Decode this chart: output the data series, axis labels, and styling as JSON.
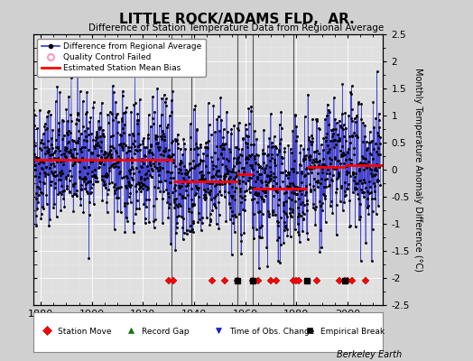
{
  "title": "LITTLE ROCK/ADAMS FLD,  AR.",
  "subtitle": "Difference of Station Temperature Data from Regional Average",
  "ylabel": "Monthly Temperature Anomaly Difference (°C)",
  "credit": "Berkeley Earth",
  "xlim": [
    1877,
    2014
  ],
  "ylim": [
    -2.5,
    2.5
  ],
  "yticks": [
    -2.5,
    -2,
    -1.5,
    -1,
    -0.5,
    0,
    0.5,
    1,
    1.5,
    2,
    2.5
  ],
  "xticks": [
    1880,
    1900,
    1920,
    1940,
    1960,
    1980,
    2000
  ],
  "bg_color": "#e0e0e0",
  "fig_bg_color": "#d0d0d0",
  "line_color": "#3333cc",
  "dot_color": "#000000",
  "bias_color": "#ff0000",
  "vertical_line_color": "#444444",
  "station_move_years": [
    1930,
    1932,
    1947,
    1952,
    1957,
    1963,
    1965,
    1970,
    1972,
    1979,
    1980,
    1981,
    1988,
    1997,
    1999,
    2000,
    2002,
    2007
  ],
  "empirical_break_years": [
    1957,
    1963,
    1984,
    1999
  ],
  "obs_change_years": [],
  "record_gap_years": [],
  "segment_biases": [
    {
      "x_start": 1877,
      "x_end": 1932,
      "bias": 0.18
    },
    {
      "x_start": 1932,
      "x_end": 1957,
      "bias": -0.22
    },
    {
      "x_start": 1957,
      "x_end": 1963,
      "bias": -0.08
    },
    {
      "x_start": 1963,
      "x_end": 1984,
      "bias": -0.35
    },
    {
      "x_start": 1984,
      "x_end": 1999,
      "bias": 0.05
    },
    {
      "x_start": 1999,
      "x_end": 2014,
      "bias": 0.08
    }
  ],
  "vertical_lines_x": [
    1931,
    1939,
    1957,
    1963,
    1979
  ],
  "seed": 42
}
